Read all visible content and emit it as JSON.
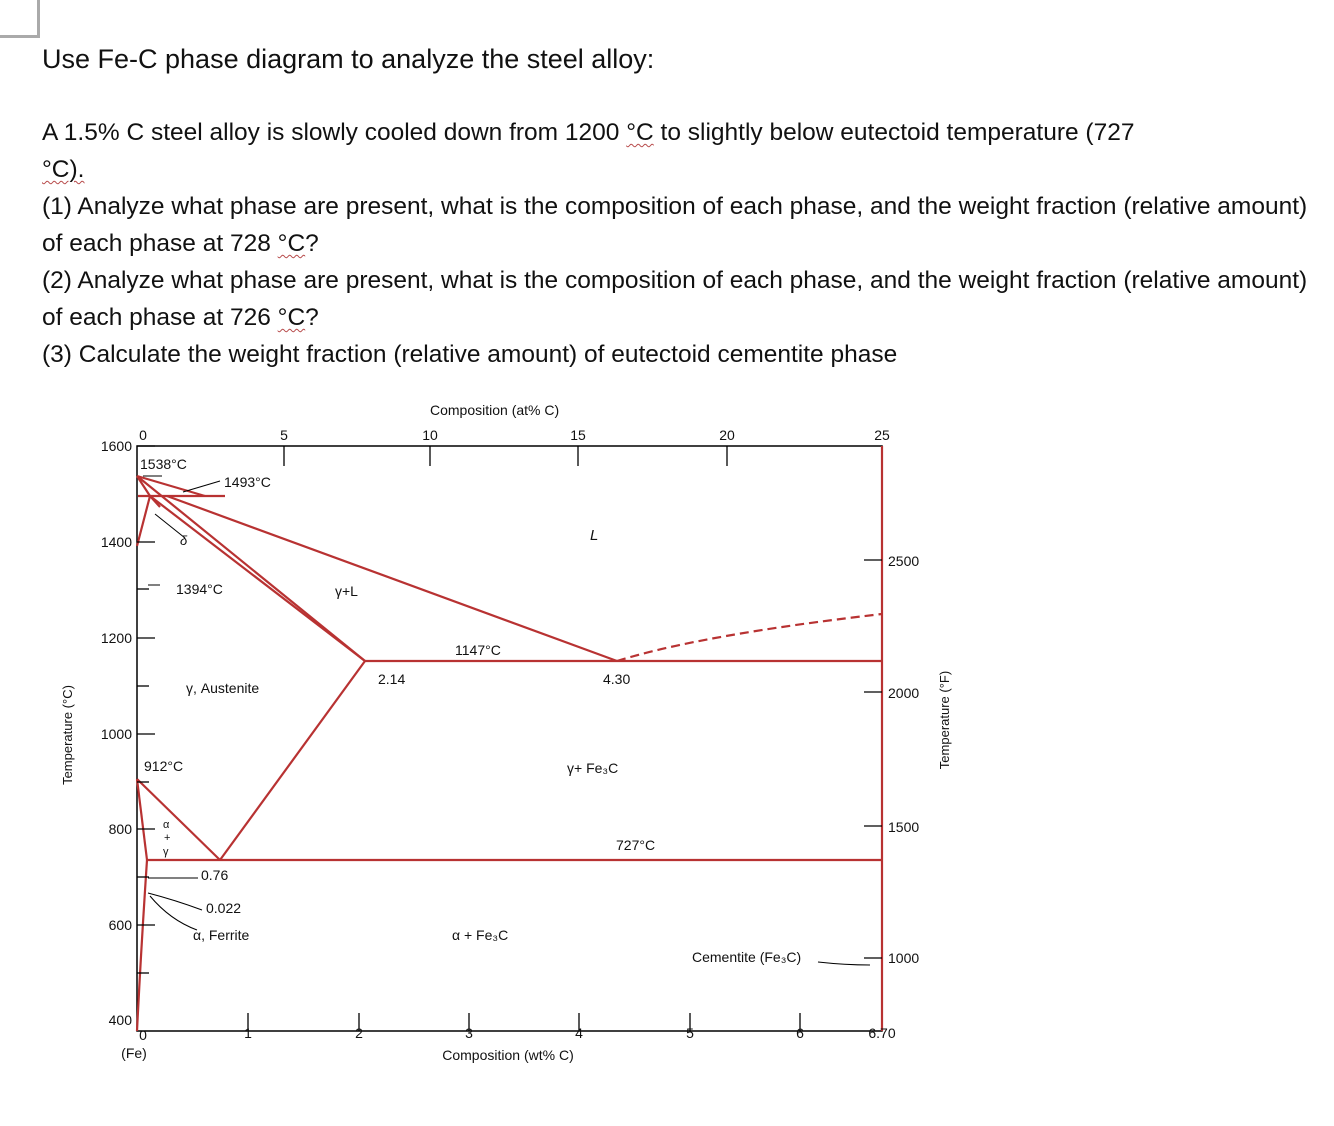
{
  "title": "Use Fe-C phase diagram to analyze the steel alloy:",
  "problem": {
    "intro_a": "A 1.5% C steel alloy is slowly cooled down from 1200 ",
    "unit_c": "°C",
    "intro_b": " to slightly below eutectoid temperature (727",
    "intro_c": "°C).",
    "q1_a": "(1) Analyze what phase are present, what is the composition of each phase, and the weight fraction (relative amount) of each phase at 728 ",
    "q1_b": "?",
    "q2_a": "(2) Analyze what phase are present, what is the composition of each phase, and the weight fraction (relative amount) of each phase at 726 ",
    "q2_b": "?",
    "q3": "(3) Calculate the weight fraction (relative amount) of eutectoid cementite phase"
  },
  "diagram": {
    "axes": {
      "top_title": "Composition (at% C)",
      "bottom_title": "Composition (wt% C)",
      "left_title": "Temperature (°C)",
      "right_title": "Temperature (°F)",
      "fe_label": "(Fe)",
      "at_ticks": [
        "0",
        "5",
        "10",
        "15",
        "20",
        "25"
      ],
      "wt_ticks": [
        "0",
        "1",
        "2",
        "3",
        "4",
        "5",
        "6",
        "6.70"
      ],
      "c_ticks": [
        "1600",
        "1400",
        "1200",
        "1000",
        "800",
        "600",
        "400"
      ],
      "f_ticks": [
        "2500",
        "2000",
        "1500",
        "1000"
      ]
    },
    "labels": {
      "t1538": "1538°C",
      "t1493": "1493°C",
      "delta": "δ",
      "t1394": "1394°C",
      "liquid": "L",
      "gamma_l": "γ+L",
      "t1147": "1147°C",
      "c214": "2.14",
      "c430": "4.30",
      "austenite": "γ, Austenite",
      "t912": "912°C",
      "gamma_fe3c": "γ+ Fe₃C",
      "t727": "727°C",
      "alpha_gamma_a": "α",
      "alpha_gamma_plus": "+",
      "alpha_gamma_g": "γ",
      "c076": "0.76",
      "c0022": "0.022",
      "ferrite": "α, Ferrite",
      "alpha_fe3c": "α + Fe₃C",
      "cementite": "Cementite (Fe₃C)"
    },
    "colors": {
      "phase_line": "#b83232",
      "frame": "#000000"
    }
  }
}
